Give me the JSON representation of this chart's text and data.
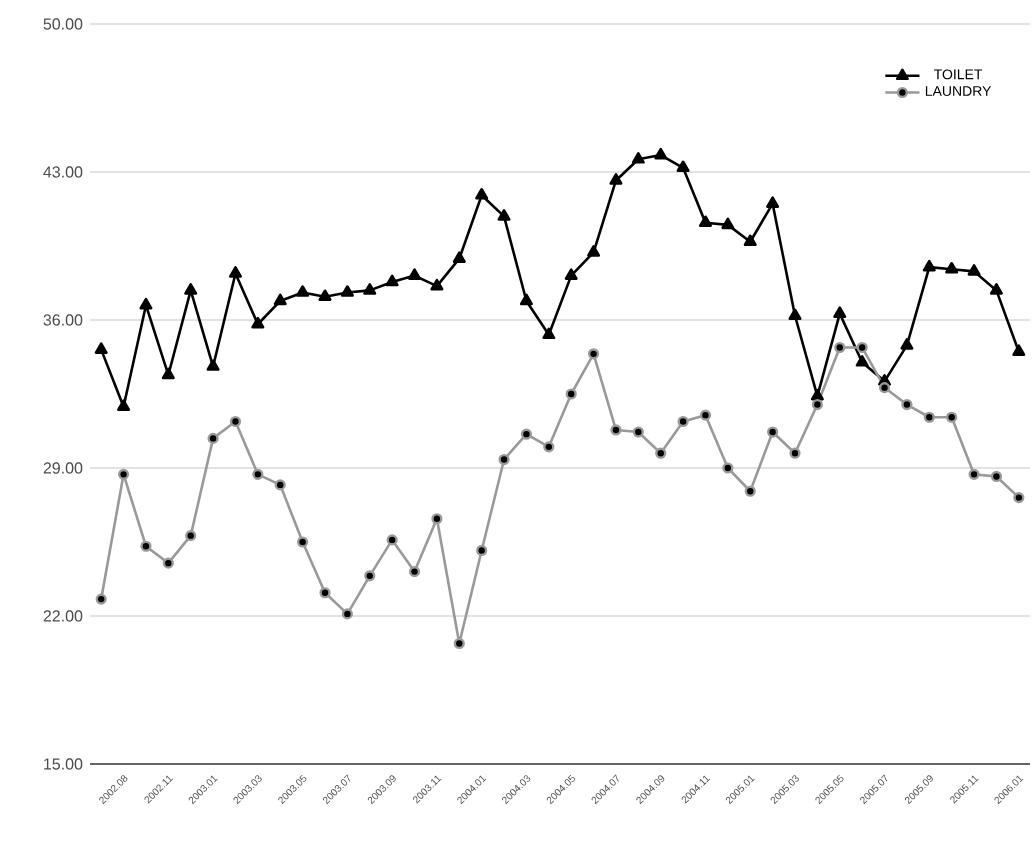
{
  "chart_data": {
    "type": "line",
    "categories": [
      null,
      "2002.08",
      null,
      "2002.11",
      null,
      "2003.01",
      null,
      "2003.03",
      null,
      "2003.05",
      null,
      "2003.07",
      null,
      "2003.09",
      null,
      "2003.11",
      null,
      "2004.01",
      null,
      "2004.03",
      null,
      "2004.05",
      null,
      "2004.07",
      null,
      "2004.09",
      null,
      "2004.11",
      null,
      "2005.01",
      null,
      "2005.03",
      null,
      "2005.05",
      null,
      "2005.07",
      null,
      "2005.09",
      null,
      "2005.11",
      null,
      "2006.01"
    ],
    "series": [
      {
        "name": "TOILET",
        "color": "#000000",
        "marker": "triangle",
        "values": [
          34.6,
          31.9,
          36.7,
          33.4,
          37.4,
          33.8,
          38.2,
          35.8,
          36.9,
          37.3,
          37.1,
          37.3,
          37.4,
          37.8,
          38.1,
          37.6,
          38.9,
          41.9,
          40.9,
          36.9,
          35.3,
          38.1,
          39.2,
          42.6,
          43.6,
          43.8,
          43.2,
          40.6,
          40.5,
          39.7,
          41.5,
          36.2,
          32.4,
          36.3,
          34.0,
          33.1,
          34.8,
          38.5,
          38.4,
          38.3,
          37.4,
          34.5
        ]
      },
      {
        "name": "LAUNDRY",
        "color": "#999999",
        "marker": "circle",
        "values": [
          22.8,
          28.7,
          25.3,
          24.5,
          25.8,
          30.4,
          31.2,
          28.7,
          28.2,
          25.5,
          23.1,
          22.1,
          23.9,
          25.6,
          24.1,
          26.6,
          20.7,
          25.1,
          29.4,
          30.6,
          30.0,
          32.5,
          34.4,
          30.8,
          30.7,
          29.7,
          31.2,
          31.5,
          29.0,
          27.9,
          30.7,
          29.7,
          32.0,
          34.7,
          34.7,
          32.8,
          32.0,
          31.4,
          31.4,
          28.7,
          28.6,
          27.6
        ]
      }
    ],
    "ylim": [
      15,
      50
    ],
    "yticks": [
      {
        "value": 15,
        "label": "15.00"
      },
      {
        "value": 22,
        "label": "22.00"
      },
      {
        "value": 29,
        "label": "29.00"
      },
      {
        "value": 36,
        "label": "36.00"
      },
      {
        "value": 43,
        "label": "43.00"
      },
      {
        "value": 50,
        "label": "50.00"
      }
    ],
    "grid": "y",
    "legend": "top right"
  }
}
